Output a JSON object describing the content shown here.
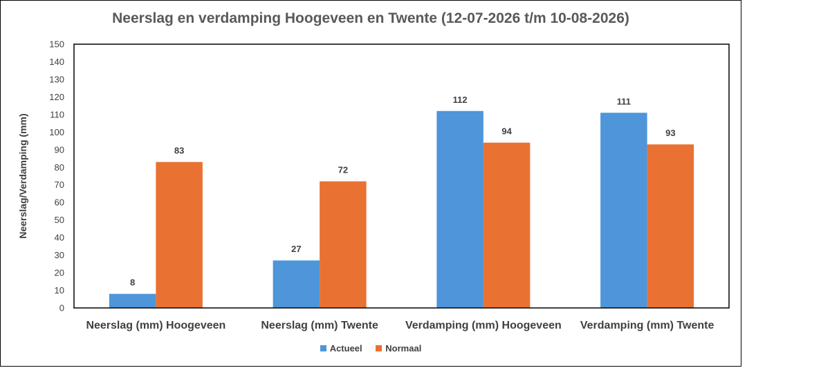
{
  "chart_data": {
    "type": "bar",
    "title": "Neerslag en verdamping Hoogeveen en Twente (12-07-2026 t/m 10-08-2026)",
    "xlabel": "",
    "ylabel": "Neerslag/Verdamping (mm)",
    "categories": [
      "Neerslag (mm) Hoogeveen",
      "Neerslag (mm) Twente",
      "Verdamping (mm) Hoogeveen",
      "Verdamping (mm) Twente"
    ],
    "series": [
      {
        "name": "Actueel",
        "values": [
          8,
          27,
          112,
          111
        ],
        "color": "#4e95d9"
      },
      {
        "name": "Normaal",
        "values": [
          83,
          72,
          94,
          93
        ],
        "color": "#e97132"
      }
    ],
    "ylim": [
      0,
      150
    ],
    "yticks": [
      "0",
      "10",
      "20",
      "30",
      "40",
      "50",
      "60",
      "70",
      "80",
      "90",
      "100",
      "110",
      "120",
      "130",
      "140",
      "150"
    ],
    "grid": false,
    "legend_position": "bottom",
    "data_labels": true
  }
}
